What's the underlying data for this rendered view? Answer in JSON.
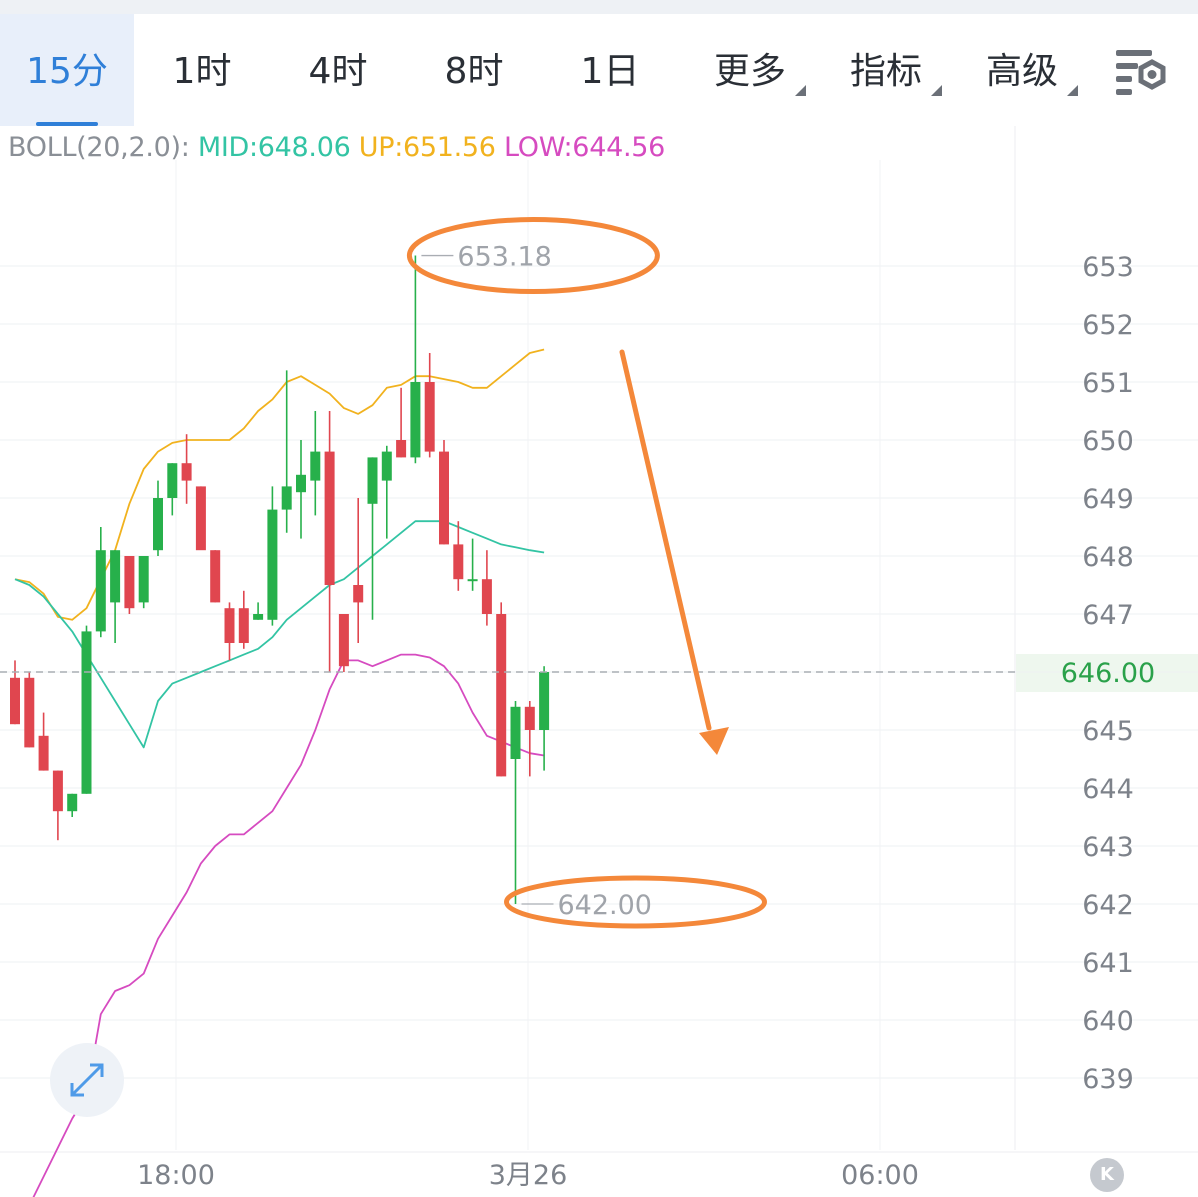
{
  "tabs": [
    {
      "label": "15分",
      "active": true,
      "caret": false
    },
    {
      "label": "1时",
      "active": false,
      "caret": false
    },
    {
      "label": "4时",
      "active": false,
      "caret": false
    },
    {
      "label": "8时",
      "active": false,
      "caret": false
    },
    {
      "label": "1日",
      "active": false,
      "caret": false
    },
    {
      "label": "更多",
      "active": false,
      "caret": true
    },
    {
      "label": "指标",
      "active": false,
      "caret": true
    },
    {
      "label": "高级",
      "active": false,
      "caret": true
    }
  ],
  "icons": {
    "settings": "chart-settings-icon",
    "expand": "expand-arrows-icon",
    "kline_badge": "k-badge-icon"
  },
  "kline_badge": "K",
  "indicator": {
    "prefix": "BOLL(20,2.0):",
    "mid": "MID:648.06",
    "up": "UP:651.56",
    "low": "LOW:644.56"
  },
  "colors": {
    "up_candle": "#27b04b",
    "down_candle": "#e0464f",
    "mid_line": "#33c4a4",
    "up_line": "#f1b21e",
    "low_line": "#d64bc0",
    "annotation": "#f4883a",
    "accent": "#2f7fd8"
  },
  "chart_data": {
    "type": "candlestick",
    "y_axis_ticks": [
      653,
      652,
      651,
      650,
      649,
      648,
      647,
      646,
      645,
      644,
      643,
      642,
      641,
      640,
      639
    ],
    "ylim": [
      638.2,
      653.4
    ],
    "x_tick_labels": [
      "18:00",
      "3月26",
      "06:00"
    ],
    "last_price": "646.00",
    "last_price_value": 646.0,
    "high_label": "653.18",
    "high_value": 653.18,
    "low_label": "642.00",
    "low_value": 642.0,
    "candles": [
      {
        "o": 645.9,
        "h": 646.2,
        "l": 645.1,
        "c": 645.1
      },
      {
        "o": 645.9,
        "h": 646.0,
        "l": 644.7,
        "c": 644.7
      },
      {
        "o": 644.9,
        "h": 645.3,
        "l": 644.3,
        "c": 644.3
      },
      {
        "o": 644.3,
        "h": 644.3,
        "l": 643.1,
        "c": 643.6
      },
      {
        "o": 643.6,
        "h": 643.9,
        "l": 643.5,
        "c": 643.9
      },
      {
        "o": 643.9,
        "h": 646.8,
        "l": 643.9,
        "c": 646.7
      },
      {
        "o": 646.7,
        "h": 648.5,
        "l": 646.6,
        "c": 648.1
      },
      {
        "o": 647.2,
        "h": 648.1,
        "l": 646.5,
        "c": 648.1
      },
      {
        "o": 648.0,
        "h": 648.0,
        "l": 647.0,
        "c": 647.1
      },
      {
        "o": 647.2,
        "h": 648.0,
        "l": 647.1,
        "c": 648.0
      },
      {
        "o": 648.1,
        "h": 649.3,
        "l": 648.0,
        "c": 649.0
      },
      {
        "o": 649.0,
        "h": 649.6,
        "l": 648.7,
        "c": 649.6
      },
      {
        "o": 649.6,
        "h": 650.1,
        "l": 648.9,
        "c": 649.3
      },
      {
        "o": 649.2,
        "h": 649.2,
        "l": 648.2,
        "c": 648.1
      },
      {
        "o": 648.1,
        "h": 648.1,
        "l": 647.2,
        "c": 647.2
      },
      {
        "o": 647.1,
        "h": 647.2,
        "l": 646.2,
        "c": 646.5
      },
      {
        "o": 647.1,
        "h": 647.4,
        "l": 646.4,
        "c": 646.5
      },
      {
        "o": 646.9,
        "h": 647.2,
        "l": 646.9,
        "c": 647.0
      },
      {
        "o": 646.9,
        "h": 649.2,
        "l": 646.8,
        "c": 648.8
      },
      {
        "o": 648.8,
        "h": 651.2,
        "l": 648.4,
        "c": 649.2
      },
      {
        "o": 649.1,
        "h": 650.0,
        "l": 648.3,
        "c": 649.4
      },
      {
        "o": 649.3,
        "h": 650.5,
        "l": 648.7,
        "c": 649.8
      },
      {
        "o": 649.8,
        "h": 650.5,
        "l": 646.0,
        "c": 647.5
      },
      {
        "o": 647.0,
        "h": 647.0,
        "l": 646.0,
        "c": 646.1
      },
      {
        "o": 647.5,
        "h": 649.0,
        "l": 646.5,
        "c": 647.2
      },
      {
        "o": 648.9,
        "h": 649.7,
        "l": 646.9,
        "c": 649.7
      },
      {
        "o": 649.3,
        "h": 649.9,
        "l": 648.3,
        "c": 649.8
      },
      {
        "o": 650.0,
        "h": 650.9,
        "l": 649.7,
        "c": 649.7
      },
      {
        "o": 649.7,
        "h": 653.18,
        "l": 649.6,
        "c": 651.0
      },
      {
        "o": 651.0,
        "h": 651.5,
        "l": 649.7,
        "c": 649.8
      },
      {
        "o": 649.8,
        "h": 650.0,
        "l": 648.2,
        "c": 648.2
      },
      {
        "o": 648.2,
        "h": 648.6,
        "l": 647.4,
        "c": 647.6
      },
      {
        "o": 647.6,
        "h": 648.3,
        "l": 647.4,
        "c": 647.6
      },
      {
        "o": 647.6,
        "h": 648.1,
        "l": 646.8,
        "c": 647.0
      },
      {
        "o": 647.0,
        "h": 647.2,
        "l": 644.2,
        "c": 644.2
      },
      {
        "o": 644.5,
        "h": 645.5,
        "l": 642.0,
        "c": 645.4
      },
      {
        "o": 645.4,
        "h": 645.5,
        "l": 644.2,
        "c": 645.0
      },
      {
        "o": 645.0,
        "h": 646.1,
        "l": 644.3,
        "c": 646.0
      }
    ],
    "boll_up": [
      647.6,
      647.55,
      647.35,
      646.95,
      646.9,
      647.1,
      647.6,
      648.1,
      648.9,
      649.5,
      649.8,
      649.95,
      650.0,
      650.0,
      650.0,
      650.0,
      650.2,
      650.5,
      650.7,
      651.0,
      651.1,
      650.95,
      650.8,
      650.55,
      650.45,
      650.6,
      650.9,
      650.95,
      651.1,
      651.1,
      651.05,
      651.0,
      650.9,
      650.9,
      651.1,
      651.3,
      651.5,
      651.56
    ],
    "boll_mid": [
      647.6,
      647.5,
      647.3,
      647.0,
      646.7,
      646.3,
      645.9,
      645.5,
      645.1,
      644.7,
      645.5,
      645.8,
      645.9,
      646.0,
      646.1,
      646.2,
      646.3,
      646.4,
      646.6,
      646.9,
      647.1,
      647.3,
      647.5,
      647.6,
      647.8,
      648.0,
      648.2,
      648.4,
      648.6,
      648.6,
      648.6,
      648.5,
      648.4,
      648.3,
      648.2,
      648.15,
      648.1,
      648.06
    ],
    "boll_low": [
      636.3,
      636.8,
      637.3,
      637.8,
      638.3,
      638.7,
      640.1,
      640.5,
      640.6,
      640.8,
      641.4,
      641.8,
      642.2,
      642.7,
      643.0,
      643.2,
      643.2,
      643.4,
      643.6,
      644.0,
      644.4,
      645.0,
      645.7,
      646.2,
      646.2,
      646.1,
      646.2,
      646.3,
      646.3,
      646.25,
      646.1,
      645.8,
      645.3,
      644.9,
      644.8,
      644.7,
      644.6,
      644.56
    ]
  }
}
